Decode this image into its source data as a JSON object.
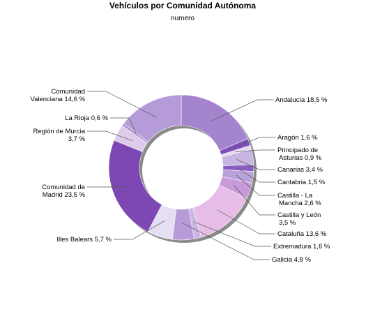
{
  "chart_data": {
    "type": "pie",
    "donut": true,
    "title": "Vehículos por Comunidad Autónoma",
    "subtitle": "numero",
    "legend": "none",
    "slices": [
      {
        "name": "Andalucía",
        "value": 18.5,
        "label_lines": [
          "Andalucía 18,5 %"
        ],
        "color": "#a484cc"
      },
      {
        "name": "Aragón",
        "value": 1.6,
        "label_lines": [
          "Aragón 1,6 %"
        ],
        "color": "#7d4fb8"
      },
      {
        "name": "Principado de Asturias",
        "value": 0.9,
        "label_lines": [
          "Principado de",
          "Asturias 0,9 %"
        ],
        "color": "#e4daf0"
      },
      {
        "name": "Canarias",
        "value": 3.4,
        "label_lines": [
          "Canarias 3,4 %"
        ],
        "color": "#c7b5e2"
      },
      {
        "name": "Cantabria",
        "value": 1.5,
        "label_lines": [
          "Cantabria 1,5 %"
        ],
        "color": "#8a5cc0"
      },
      {
        "name": "Castilla - La Mancha",
        "value": 2.6,
        "label_lines": [
          "Castilla - La",
          "Mancha 2,6 %"
        ],
        "color": "#b9a2da"
      },
      {
        "name": "Castilla y León",
        "value": 3.5,
        "label_lines": [
          "Castilla y León",
          "3,5 %"
        ],
        "color": "#c99ad8"
      },
      {
        "name": "Cataluña",
        "value": 13.6,
        "label_lines": [
          "Cataluña 13,6 %"
        ],
        "color": "#e6bde6"
      },
      {
        "name": "Extremadura",
        "value": 1.6,
        "label_lines": [
          "Extremadura 1,6 %"
        ],
        "color": "#cbb5e3"
      },
      {
        "name": "Galicia",
        "value": 4.8,
        "label_lines": [
          "Galicia 4,8 %"
        ],
        "color": "#b89ad8"
      },
      {
        "name": "Illes Balears",
        "value": 5.7,
        "label_lines": [
          "Illes Balears 5,7 %"
        ],
        "color": "#e6def2"
      },
      {
        "name": "Comunidad de Madrid",
        "value": 23.5,
        "label_lines": [
          "Comunidad de",
          "Madrid 23,5 %"
        ],
        "color": "#7e48b4"
      },
      {
        "name": "Región de Murcia",
        "value": 3.7,
        "label_lines": [
          "Región de Murcia",
          "3,7 %"
        ],
        "color": "#dccbeb"
      },
      {
        "name": "La Rioja",
        "value": 0.6,
        "label_lines": [
          "La Rioja 0,6 %"
        ],
        "color": "#ad8fd4"
      },
      {
        "name": "Comunidad Valenciana",
        "value": 14.6,
        "label_lines": [
          "Comunidad",
          "Valenciana 14,6 %"
        ],
        "color": "#b59cd8"
      }
    ]
  }
}
